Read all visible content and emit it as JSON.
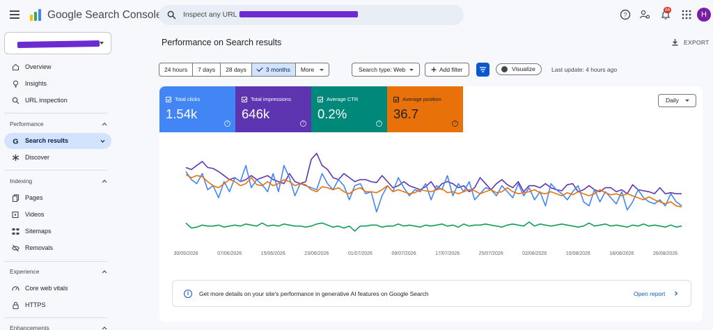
{
  "app": {
    "title_google": "Google",
    "title_product": "Search Console"
  },
  "search": {
    "placeholder": "Inspect any URL in"
  },
  "topbar": {
    "notification_count": "86",
    "avatar_initial": "H"
  },
  "sidebar": {
    "items_top": [
      {
        "label": "Overview",
        "icon": "home-icon"
      },
      {
        "label": "Insights",
        "icon": "lightbulb-icon"
      },
      {
        "label": "URL inspection",
        "icon": "search-icon"
      }
    ],
    "performance": {
      "heading": "Performance",
      "items": [
        {
          "label": "Search results",
          "icon": "google-g-icon"
        },
        {
          "label": "Discover",
          "icon": "asterisk-icon"
        }
      ]
    },
    "indexing": {
      "heading": "Indexing",
      "items": [
        {
          "label": "Pages",
          "icon": "pages-icon"
        },
        {
          "label": "Videos",
          "icon": "video-icon"
        },
        {
          "label": "Sitemaps",
          "icon": "sitemap-icon"
        },
        {
          "label": "Removals",
          "icon": "removal-icon"
        }
      ]
    },
    "experience": {
      "heading": "Experience",
      "items": [
        {
          "label": "Core web vitals",
          "icon": "gauge-icon"
        },
        {
          "label": "HTTPS",
          "icon": "lock-icon"
        }
      ]
    },
    "enhancements": {
      "heading": "Enhancements"
    }
  },
  "main": {
    "title": "Performance on Search results",
    "export_label": "EXPORT",
    "ranges": [
      "24 hours",
      "7 days",
      "28 days",
      "3 months",
      "More"
    ],
    "search_type": "Search type: Web",
    "add_filter": "Add filter",
    "visualize": "Visualize",
    "last_update": "Last update: 4 hours ago",
    "granularity": "Daily",
    "ai_banner": "Get more details on your site's performance in generative AI features on Google Search",
    "open_report": "Open report"
  },
  "metrics": [
    {
      "label": "Total clicks",
      "value": "1.54k",
      "color": "#4285f4"
    },
    {
      "label": "Total impressions",
      "value": "646k",
      "color": "#5e35b1"
    },
    {
      "label": "Average CTR",
      "value": "0.2%",
      "color": "#00897b"
    },
    {
      "label": "Average position",
      "value": "36.7",
      "color": "#e8710a"
    }
  ],
  "chart_data": {
    "type": "line",
    "x_tick_labels": [
      "30/05/2026",
      "07/06/2026",
      "15/06/2026",
      "23/06/2026",
      "01/07/2026",
      "09/07/2026",
      "17/07/2026",
      "25/07/2026",
      "02/08/2026",
      "10/08/2026",
      "18/08/2026",
      "26/08/2026"
    ],
    "x_start": "2026-05-30",
    "days": 92,
    "series": [
      {
        "name": "Total impressions",
        "color": "#5e35b1",
        "values": [
          72,
          70,
          74,
          78,
          72,
          71,
          68,
          64,
          60,
          62,
          58,
          60,
          64,
          60,
          62,
          64,
          60,
          58,
          56,
          66,
          58,
          56,
          58,
          80,
          86,
          74,
          70,
          62,
          60,
          66,
          62,
          58,
          60,
          60,
          58,
          57,
          64,
          58,
          52,
          54,
          58,
          54,
          52,
          50,
          53,
          58,
          50,
          56,
          58,
          56,
          52,
          54,
          48,
          52,
          62,
          56,
          50,
          56,
          60,
          55,
          52,
          58,
          48,
          54,
          54,
          52,
          56,
          52,
          50,
          49,
          55,
          56,
          48,
          50,
          54,
          50,
          48,
          52,
          52,
          48,
          50,
          46,
          55,
          50,
          49,
          48,
          46,
          52,
          46,
          47,
          46,
          46
        ]
      },
      {
        "name": "Total clicks",
        "color": "#4285f4",
        "values": [
          68,
          60,
          56,
          66,
          50,
          54,
          42,
          58,
          48,
          62,
          58,
          74,
          52,
          60,
          55,
          48,
          66,
          48,
          74,
          62,
          44,
          56,
          54,
          52,
          50,
          66,
          56,
          50,
          60,
          54,
          40,
          54,
          56,
          46,
          48,
          28,
          44,
          54,
          48,
          62,
          52,
          44,
          50,
          48,
          56,
          40,
          54,
          50,
          64,
          44,
          56,
          48,
          58,
          40,
          46,
          52,
          50,
          44,
          54,
          48,
          42,
          56,
          44,
          52,
          40,
          48,
          34,
          56,
          50,
          46,
          40,
          48,
          54,
          38,
          34,
          50,
          38,
          48,
          42,
          36,
          48,
          30,
          38,
          50,
          42,
          38,
          36,
          40,
          34,
          46,
          38,
          34
        ]
      },
      {
        "name": "Average position",
        "color": "#e8710a",
        "values": [
          65,
          62,
          64,
          63,
          58,
          54,
          52,
          56,
          60,
          58,
          54,
          56,
          62,
          55,
          54,
          58,
          54,
          56,
          60,
          58,
          54,
          56,
          55,
          50,
          48,
          53,
          52,
          50,
          52,
          48,
          46,
          50,
          52,
          48,
          48,
          47,
          50,
          54,
          48,
          50,
          48,
          46,
          47,
          50,
          49,
          48,
          50,
          51,
          47,
          48,
          46,
          48,
          50,
          49,
          46,
          48,
          50,
          47,
          48,
          52,
          48,
          46,
          47,
          48,
          50,
          47,
          46,
          48,
          46,
          44,
          47,
          45,
          48,
          46,
          44,
          46,
          50,
          47,
          45,
          46,
          44,
          46,
          44,
          42,
          40,
          43,
          40,
          38,
          36,
          38,
          34,
          33
        ]
      },
      {
        "name": "Average CTR",
        "color": "#0f9d58",
        "values": [
          17,
          12,
          13,
          15,
          14,
          14,
          15,
          13,
          14,
          15,
          14,
          16,
          15,
          14,
          17,
          14,
          15,
          14,
          16,
          15,
          14,
          14,
          13,
          14,
          16,
          17,
          15,
          13,
          14,
          12,
          14,
          9,
          14,
          14,
          15,
          15,
          13,
          14,
          14,
          16,
          14,
          15,
          14,
          13,
          15,
          14,
          15,
          16,
          14,
          15,
          13,
          16,
          14,
          15,
          15,
          16,
          15,
          14,
          13,
          15,
          16,
          15,
          14,
          18,
          14,
          16,
          15,
          14,
          15,
          16,
          15,
          14,
          13,
          14,
          17,
          14,
          15,
          16,
          14,
          15,
          14,
          13,
          15,
          14,
          16,
          14,
          15,
          14,
          13,
          15,
          13,
          14
        ]
      }
    ]
  }
}
